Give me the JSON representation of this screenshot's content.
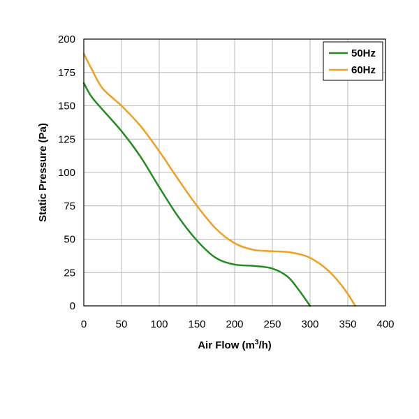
{
  "chart_data": {
    "type": "line",
    "xlabel": "Air Flow (m3/h)",
    "xlabel_parts": {
      "base": "Air Flow (m",
      "sup": "3",
      "end": "/h)"
    },
    "ylabel": "Static Pressure (Pa)",
    "xlim": [
      0,
      400
    ],
    "ylim": [
      0,
      200
    ],
    "xticks": [
      0,
      50,
      100,
      150,
      200,
      250,
      300,
      350,
      400
    ],
    "yticks": [
      0,
      25,
      50,
      75,
      100,
      125,
      150,
      175,
      200
    ],
    "grid": true,
    "legend_position": "top-right",
    "series": [
      {
        "name": "50Hz",
        "color": "#228B22",
        "x": [
          0,
          10,
          25,
          50,
          75,
          100,
          125,
          150,
          175,
          200,
          225,
          250,
          270,
          285,
          300
        ],
        "y": [
          167,
          157,
          147,
          131,
          112,
          89,
          67,
          49,
          36,
          31,
          30,
          28,
          22,
          12,
          0
        ]
      },
      {
        "name": "60Hz",
        "color": "#F0A020",
        "x": [
          0,
          10,
          25,
          50,
          75,
          100,
          125,
          150,
          175,
          200,
          225,
          250,
          275,
          300,
          325,
          345,
          360
        ],
        "y": [
          189,
          178,
          163,
          150,
          135,
          116,
          95,
          75,
          58,
          47,
          42,
          41,
          40,
          36,
          26,
          13,
          0
        ]
      }
    ]
  }
}
